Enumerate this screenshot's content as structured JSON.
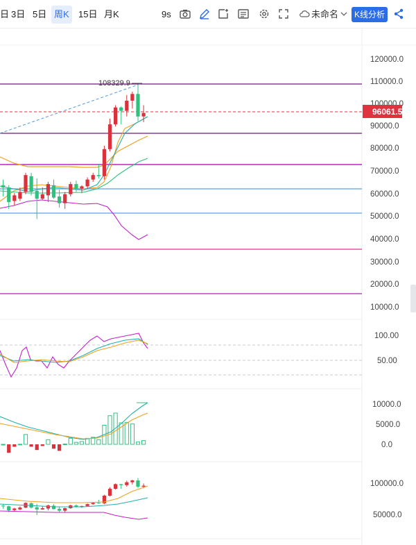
{
  "toolbar": {
    "timeframes": [
      "日",
      "3日",
      "5日",
      "周K",
      "15日",
      "月K"
    ],
    "active_timeframe": "周K",
    "interval": "9s",
    "layout_name": "未命名",
    "kline_button": "K线分析",
    "icons": [
      "camera-icon",
      "pencil-icon",
      "annotate-icon",
      "indicator-template-icon",
      "gear-icon",
      "fullscreen-icon",
      "cloud-icon",
      "chevron-down-icon",
      "share-icon"
    ]
  },
  "colors": {
    "up": "#d9323c",
    "down": "#2ec27e",
    "price_line": "#e03340",
    "accent": "#2b6de6",
    "purple_line": "#6d1b7b",
    "magenta_line": "#c31ec7",
    "blue_line": "#5aa0e6",
    "pink_line": "#e0309a"
  },
  "main_axis": {
    "ticks": [
      "120000.0",
      "110000.0",
      "100000.0",
      "90000.0",
      "80000.0",
      "70000.0",
      "60000.0",
      "50000.0",
      "40000.0",
      "30000.0",
      "20000.0",
      "10000.0"
    ],
    "current_price": "96061.5",
    "high_label": "108329.9"
  },
  "pane2_axis": {
    "ticks": [
      "100.00",
      "50.00"
    ]
  },
  "pane3_axis": {
    "ticks": [
      "10000.0",
      "5000.0",
      "0.0"
    ]
  },
  "pane4_axis": {
    "ticks": [
      "100000.0",
      "50000.0"
    ]
  },
  "chart_data": {
    "type": "candlestick",
    "candles": [
      {
        "o": 64000,
        "h": 66500,
        "l": 59000,
        "c": 63000
      },
      {
        "o": 63000,
        "h": 64000,
        "l": 53500,
        "c": 56500
      },
      {
        "o": 57000,
        "h": 60500,
        "l": 55000,
        "c": 59500
      },
      {
        "o": 58000,
        "h": 63000,
        "l": 57000,
        "c": 61000
      },
      {
        "o": 61000,
        "h": 69500,
        "l": 60000,
        "c": 68500
      },
      {
        "o": 68000,
        "h": 69500,
        "l": 59500,
        "c": 61000
      },
      {
        "o": 61500,
        "h": 67000,
        "l": 49000,
        "c": 58000
      },
      {
        "o": 58000,
        "h": 63000,
        "l": 57500,
        "c": 60000
      },
      {
        "o": 59500,
        "h": 65500,
        "l": 56500,
        "c": 64500
      },
      {
        "o": 64000,
        "h": 66500,
        "l": 58000,
        "c": 58500
      },
      {
        "o": 59000,
        "h": 62000,
        "l": 54000,
        "c": 56000
      },
      {
        "o": 56000,
        "h": 61000,
        "l": 53500,
        "c": 60000
      },
      {
        "o": 60000,
        "h": 65500,
        "l": 59000,
        "c": 64500
      },
      {
        "o": 64500,
        "h": 66000,
        "l": 61000,
        "c": 62500
      },
      {
        "o": 62500,
        "h": 64000,
        "l": 60500,
        "c": 63500
      },
      {
        "o": 63500,
        "h": 67500,
        "l": 62500,
        "c": 66500
      },
      {
        "o": 66500,
        "h": 69500,
        "l": 65500,
        "c": 68500
      },
      {
        "o": 68500,
        "h": 73500,
        "l": 67000,
        "c": 68000
      },
      {
        "o": 68000,
        "h": 81500,
        "l": 66500,
        "c": 80000
      },
      {
        "o": 80000,
        "h": 93500,
        "l": 79000,
        "c": 91000
      },
      {
        "o": 91000,
        "h": 99500,
        "l": 90000,
        "c": 98500
      },
      {
        "o": 98500,
        "h": 99000,
        "l": 91000,
        "c": 97000
      },
      {
        "o": 97000,
        "h": 104000,
        "l": 94500,
        "c": 101500
      },
      {
        "o": 101500,
        "h": 105500,
        "l": 98000,
        "c": 104500
      },
      {
        "o": 104500,
        "h": 108329.9,
        "l": 92500,
        "c": 94500
      },
      {
        "o": 94500,
        "h": 99500,
        "l": 92000,
        "c": 96061.5
      }
    ]
  }
}
